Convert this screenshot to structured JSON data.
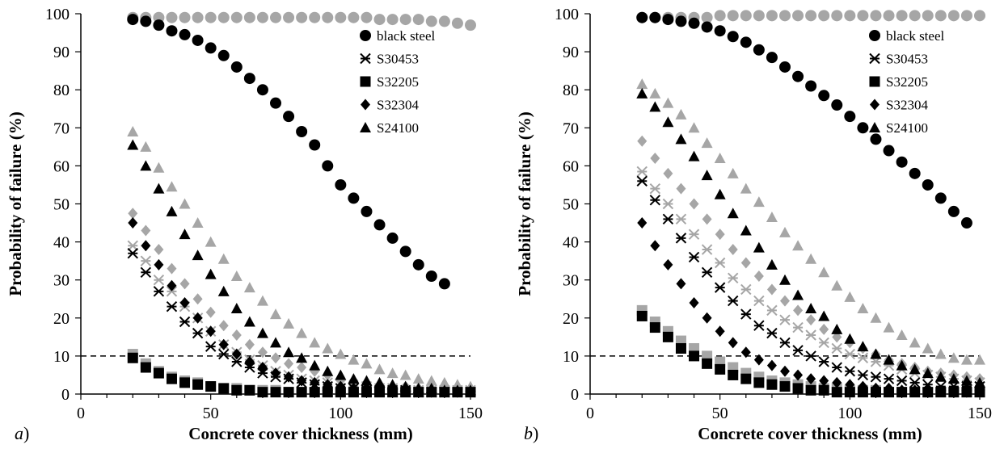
{
  "colors": {
    "black": "#000000",
    "gray": "#a6a6a6",
    "axis": "#000000"
  },
  "chart_data": [
    {
      "type": "scatter",
      "panel_label": "a",
      "xlabel": "Concrete cover thickness (mm)",
      "ylabel": "Probability of failure (%)",
      "xlim": [
        0,
        150
      ],
      "ylim": [
        0,
        100
      ],
      "xticks": [
        0,
        50,
        100,
        150
      ],
      "yticks": [
        0,
        10,
        20,
        30,
        40,
        50,
        60,
        70,
        80,
        90,
        100
      ],
      "threshold_line": 10,
      "legend_position": "top-right",
      "legend": [
        "black steel",
        "S30453",
        "S32205",
        "S32304",
        "S24100"
      ],
      "x": [
        20,
        25,
        30,
        35,
        40,
        45,
        50,
        55,
        60,
        65,
        70,
        75,
        80,
        85,
        90,
        95,
        100,
        105,
        110,
        115,
        120,
        125,
        130,
        135,
        140,
        145,
        150
      ],
      "series": [
        {
          "name": "black steel",
          "marker": "circle",
          "color": "black",
          "values": [
            98.5,
            98,
            97,
            95.5,
            94.5,
            93,
            91,
            89,
            86,
            83,
            80,
            76.5,
            73,
            69,
            65.5,
            60,
            55,
            51.5,
            48,
            44.5,
            41,
            37.5,
            34,
            31,
            29,
            null,
            null
          ]
        },
        {
          "marker": "circle",
          "color": "gray",
          "values": [
            99,
            99,
            99,
            99,
            99,
            99,
            99,
            99,
            99,
            99,
            99,
            99,
            99,
            99,
            99,
            99,
            99,
            99,
            99,
            98.5,
            98.5,
            98.5,
            98.5,
            98,
            98,
            97.5,
            97
          ]
        },
        {
          "name": "S30453",
          "marker": "star",
          "color": "black",
          "values": [
            37,
            32,
            27,
            23,
            19,
            16,
            12.5,
            10.5,
            8.5,
            7,
            5.5,
            4.5,
            4,
            3,
            2.5,
            2,
            1.5,
            1.5,
            1,
            1,
            1,
            1,
            0.5,
            0.5,
            0.5,
            0.5,
            0.5
          ]
        },
        {
          "marker": "star",
          "color": "gray",
          "values": [
            39,
            35,
            30,
            27,
            23,
            20,
            16.5,
            13,
            11,
            9,
            7.5,
            6,
            5,
            4,
            3.5,
            3,
            2.5,
            2,
            2,
            1.5,
            1.5,
            1,
            1,
            1,
            1,
            1,
            1
          ]
        },
        {
          "name": "S32205",
          "marker": "square",
          "color": "black",
          "values": [
            9.5,
            7,
            5.5,
            4,
            3,
            2.5,
            2,
            1.5,
            1,
            1,
            0.5,
            0.5,
            0.5,
            0.5,
            0.5,
            0.5,
            0.5,
            0.5,
            0.5,
            0.5,
            0.5,
            0.5,
            0.5,
            0.5,
            0.5,
            0.5,
            0.5
          ]
        },
        {
          "marker": "square",
          "color": "gray",
          "values": [
            10.5,
            8,
            6,
            4.5,
            3.5,
            3,
            2,
            1.5,
            1.5,
            1,
            1,
            1,
            0.5,
            0.5,
            0.5,
            0.5,
            0.5,
            0.5,
            0.5,
            0.5,
            0.5,
            0.5,
            0.5,
            0.5,
            0.5,
            0.5,
            0.5
          ]
        },
        {
          "name": "S32304",
          "marker": "diamond",
          "color": "black",
          "values": [
            45,
            39,
            34,
            28.5,
            24,
            20,
            16.5,
            13,
            10.5,
            8.5,
            7,
            5.5,
            4.5,
            3.5,
            3,
            2.5,
            2,
            1.5,
            1.5,
            1,
            1,
            1,
            0.5,
            0.5,
            0.5,
            0.5,
            0.5
          ]
        },
        {
          "marker": "diamond",
          "color": "gray",
          "values": [
            47.5,
            43,
            38,
            33,
            29,
            25,
            21.5,
            18,
            15.5,
            13,
            11,
            9.5,
            8,
            7,
            6,
            5,
            4,
            3.5,
            3,
            2.5,
            2,
            2,
            1.5,
            1.5,
            1,
            1,
            1
          ]
        },
        {
          "name": "S24100",
          "marker": "triangle",
          "color": "black",
          "values": [
            65.5,
            60,
            54,
            48,
            42,
            36.5,
            31.5,
            27,
            22.5,
            19,
            16,
            13.5,
            11,
            9.5,
            7.5,
            6,
            5,
            4,
            3.5,
            3,
            2.5,
            2,
            1.5,
            1.5,
            1,
            1,
            1
          ]
        },
        {
          "marker": "triangle",
          "color": "gray",
          "values": [
            69,
            65,
            59.5,
            54.5,
            50,
            45,
            40,
            35.5,
            31,
            28,
            24.5,
            21,
            18.5,
            16,
            13.5,
            12,
            10.5,
            9,
            8,
            6.5,
            5.5,
            5,
            4,
            3.5,
            3,
            2.5,
            2
          ]
        }
      ]
    },
    {
      "type": "scatter",
      "panel_label": "b",
      "xlabel": "Concrete cover thickness (mm)",
      "ylabel": "Probability of failure (%)",
      "xlim": [
        0,
        150
      ],
      "ylim": [
        0,
        100
      ],
      "xticks": [
        0,
        50,
        100,
        150
      ],
      "yticks": [
        0,
        10,
        20,
        30,
        40,
        50,
        60,
        70,
        80,
        90,
        100
      ],
      "threshold_line": 10,
      "legend_position": "top-right",
      "legend": [
        "black steel",
        "S30453",
        "S32205",
        "S32304",
        "S24100"
      ],
      "x": [
        20,
        25,
        30,
        35,
        40,
        45,
        50,
        55,
        60,
        65,
        70,
        75,
        80,
        85,
        90,
        95,
        100,
        105,
        110,
        115,
        120,
        125,
        130,
        135,
        140,
        145,
        150
      ],
      "series": [
        {
          "name": "black steel",
          "marker": "circle",
          "color": "black",
          "values": [
            99,
            99,
            98.5,
            98,
            97.5,
            96.5,
            95.5,
            94,
            92.5,
            90.5,
            88.5,
            86,
            83.5,
            81,
            78.5,
            76,
            73,
            70,
            67,
            64,
            61,
            58,
            55,
            51.5,
            48,
            45,
            null
          ]
        },
        {
          "marker": "circle",
          "color": "gray",
          "values": [
            99,
            99,
            99,
            99,
            99,
            99,
            99.5,
            99.5,
            99.5,
            99.5,
            99.5,
            99.5,
            99.5,
            99.5,
            99.5,
            99.5,
            99.5,
            99.5,
            99.5,
            99.5,
            99.5,
            99.5,
            99.5,
            99.5,
            99.5,
            99.5,
            99.5
          ]
        },
        {
          "name": "S30453",
          "marker": "star",
          "color": "black",
          "values": [
            56,
            51,
            46,
            41,
            36,
            32,
            28,
            24.5,
            21,
            18,
            16,
            13.5,
            11.5,
            10,
            8.5,
            7,
            6,
            5,
            4.5,
            4,
            3.5,
            3,
            2.5,
            2,
            2,
            2,
            2
          ]
        },
        {
          "marker": "star",
          "color": "gray",
          "values": [
            58.5,
            54,
            50,
            46,
            42,
            38,
            34.5,
            30.5,
            27.5,
            24.5,
            22,
            19.5,
            17.5,
            15.5,
            13.5,
            12,
            10.5,
            9.5,
            8.5,
            7.5,
            6.5,
            5.5,
            5,
            4.5,
            4,
            3.5,
            3
          ]
        },
        {
          "name": "S32205",
          "marker": "square",
          "color": "black",
          "values": [
            20.5,
            17.5,
            15,
            12,
            10,
            8,
            6.5,
            5,
            4,
            3,
            2.5,
            2,
            1.5,
            1,
            1,
            0.5,
            0.5,
            0.5,
            0.5,
            0.5,
            0.5,
            0.5,
            0.5,
            0.5,
            0.5,
            0.5,
            0.5
          ]
        },
        {
          "marker": "square",
          "color": "gray",
          "values": [
            22,
            19,
            16.5,
            14,
            12,
            10,
            8.5,
            7,
            5.5,
            4.5,
            3.5,
            3,
            2.5,
            2,
            1.5,
            1.5,
            1,
            1,
            1,
            0.5,
            0.5,
            0.5,
            0.5,
            0.5,
            0.5,
            0.5,
            0.5
          ]
        },
        {
          "name": "S32304",
          "marker": "diamond",
          "color": "black",
          "values": [
            45,
            39,
            34,
            29,
            24,
            20,
            16.5,
            13.5,
            11,
            9,
            7.5,
            6,
            5,
            4,
            3.5,
            3,
            2.5,
            2,
            1.5,
            1.5,
            1,
            1,
            1,
            1,
            0.5,
            0.5,
            0.5
          ]
        },
        {
          "marker": "diamond",
          "color": "gray",
          "values": [
            66.5,
            62,
            58,
            54,
            50,
            46,
            42,
            38,
            34.5,
            31,
            27.5,
            24.5,
            22,
            19.5,
            17,
            15,
            13.5,
            12,
            10.5,
            9,
            8,
            7,
            6,
            5.5,
            5,
            4.5,
            4
          ]
        },
        {
          "name": "S24100",
          "marker": "triangle",
          "color": "black",
          "values": [
            79,
            75.5,
            71.5,
            67,
            62.5,
            57.5,
            52.5,
            47.5,
            43,
            38.5,
            34,
            30,
            26,
            22.5,
            20.5,
            17,
            14.5,
            12.5,
            10.5,
            9,
            7.5,
            6.5,
            5.5,
            4.5,
            4,
            3.5,
            3
          ]
        },
        {
          "marker": "triangle",
          "color": "gray",
          "values": [
            81.5,
            79,
            76.5,
            73.5,
            70,
            66,
            62,
            58,
            54,
            50.5,
            46.5,
            42.5,
            39,
            35.5,
            32,
            28.5,
            25.5,
            22.5,
            20,
            17.5,
            15.5,
            13.5,
            12,
            10.5,
            9.5,
            9,
            9
          ]
        }
      ]
    }
  ]
}
